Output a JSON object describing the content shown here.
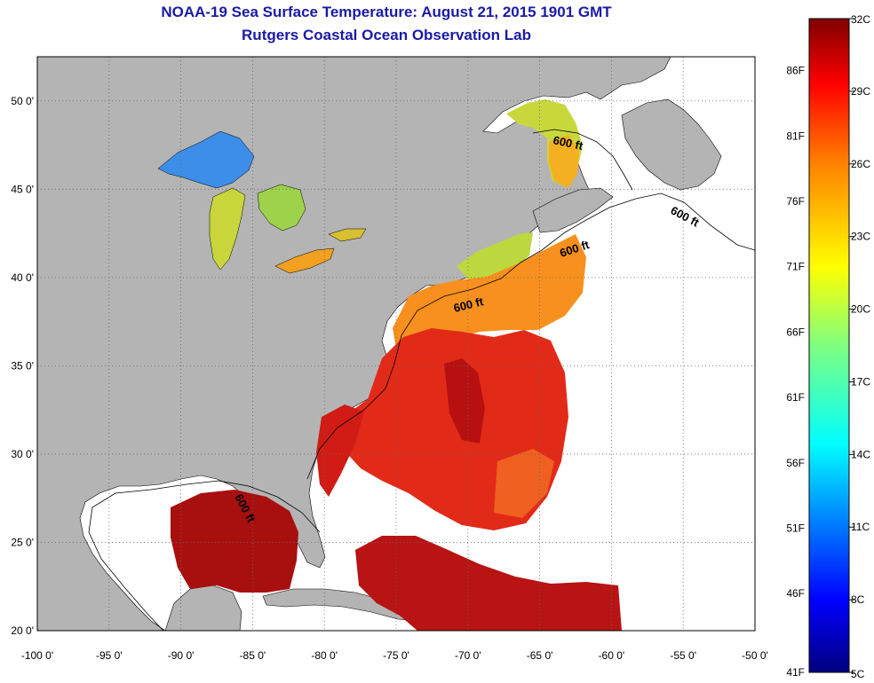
{
  "header": {
    "title": "NOAA-19 Sea Surface Temperature:  August 21, 2015 1901 GMT",
    "subtitle": "Rutgers Coastal Ocean Observation Lab"
  },
  "map": {
    "lon_range": [
      -100,
      -50
    ],
    "lat_range": [
      20,
      52.5
    ],
    "lon_ticks": [
      "-100 0'",
      "-95 0'",
      "-90 0'",
      "-85 0'",
      "-80 0'",
      "-75 0'",
      "-70 0'",
      "-65 0'",
      "-60 0'",
      "-55 0'",
      "-50 0'"
    ],
    "lat_ticks": [
      "20 0'",
      "25 0'",
      "30 0'",
      "35 0'",
      "40 0'",
      "45 0'",
      "50 0'"
    ],
    "contour_labels": [
      "600 ft",
      "600 ft",
      "600 ft",
      "600 ft",
      "600 ft"
    ],
    "land_color": "#b4b4b4",
    "no_data_color": "#ffffff"
  },
  "colorbar": {
    "celsius_labels": [
      "32C",
      "29C",
      "26C",
      "23C",
      "20C",
      "17C",
      "14C",
      "11C",
      "8C",
      "5C"
    ],
    "fahrenheit_labels": [
      "86F",
      "81F",
      "76F",
      "71F",
      "66F",
      "61F",
      "56F",
      "51F",
      "46F",
      "41F"
    ],
    "colors": [
      "#7f0000",
      "#ff0000",
      "#ff8000",
      "#ffff00",
      "#80ff80",
      "#00ffff",
      "#0080ff",
      "#0000ff",
      "#00007f"
    ]
  }
}
